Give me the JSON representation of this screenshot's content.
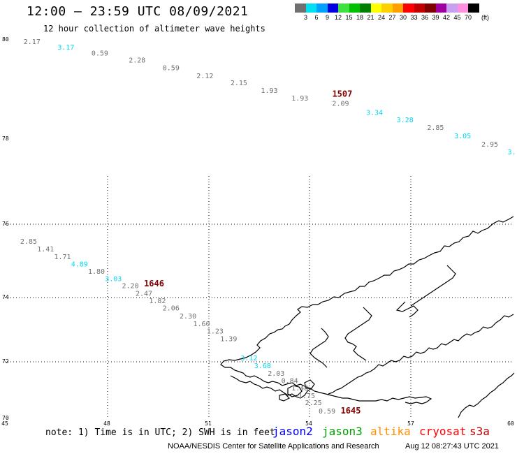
{
  "header": {
    "title": "12:00 – 23:59 UTC 08/09/2021",
    "subtitle": "12 hour collection of altimeter wave heights"
  },
  "colorbar": {
    "labels": [
      "3",
      "6",
      "9",
      "12",
      "15",
      "18",
      "21",
      "24",
      "27",
      "30",
      "33",
      "36",
      "39",
      "42",
      "45",
      "70"
    ],
    "unit": "(ft)",
    "colors": [
      "#707070",
      "#00e0f0",
      "#00a0ff",
      "#0000e0",
      "#40e040",
      "#00c000",
      "#008000",
      "#ffff00",
      "#ffd000",
      "#ffa000",
      "#ff0000",
      "#c00000",
      "#800000",
      "#a000a0",
      "#c8a0f0",
      "#ff90e0",
      "#000000"
    ]
  },
  "map": {
    "lat_labels": [
      "80",
      "78",
      "76",
      "74",
      "72",
      "70"
    ],
    "lon_labels": [
      "45",
      "48",
      "51",
      "54",
      "57",
      "60"
    ]
  },
  "tracks": {
    "track1": [
      {
        "lon": 45.8,
        "lat": 79.87,
        "v": "2.17",
        "c": "gray"
      },
      {
        "lon": 46.8,
        "lat": 79.72,
        "v": "3.17",
        "c": "cyan"
      },
      {
        "lon": 47.8,
        "lat": 79.57,
        "v": "0.59",
        "c": "gray"
      },
      {
        "lon": 48.9,
        "lat": 79.38,
        "v": "2.28",
        "c": "gray"
      },
      {
        "lon": 49.9,
        "lat": 79.18,
        "v": "0.59",
        "c": "gray"
      },
      {
        "lon": 50.9,
        "lat": 78.97,
        "v": "2.12",
        "c": "gray"
      },
      {
        "lon": 51.9,
        "lat": 78.78,
        "v": "2.15",
        "c": "gray"
      },
      {
        "lon": 52.8,
        "lat": 78.58,
        "v": "1.93",
        "c": "gray"
      },
      {
        "lon": 53.7,
        "lat": 78.38,
        "v": "1.93",
        "c": "gray"
      },
      {
        "lon": 54.9,
        "lat": 78.24,
        "v": "2.09",
        "c": "gray"
      },
      {
        "lon": 55.9,
        "lat": 78.0,
        "v": "3.34",
        "c": "cyan"
      },
      {
        "lon": 56.8,
        "lat": 77.8,
        "v": "3.28",
        "c": "cyan"
      },
      {
        "lon": 57.7,
        "lat": 77.6,
        "v": "2.85",
        "c": "gray"
      },
      {
        "lon": 58.5,
        "lat": 77.38,
        "v": "3.05",
        "c": "cyan"
      },
      {
        "lon": 59.3,
        "lat": 77.16,
        "v": "2.95",
        "c": "gray"
      },
      {
        "lon": 59.95,
        "lat": 76.96,
        "v": "3.",
        "c": "cyan"
      }
    ],
    "track2": [
      {
        "lon": 45.7,
        "lat": 74.59,
        "v": "2.85",
        "c": "gray"
      },
      {
        "lon": 46.2,
        "lat": 74.39,
        "v": "1.41",
        "c": "gray"
      },
      {
        "lon": 46.7,
        "lat": 74.19,
        "v": "1.71",
        "c": "gray"
      },
      {
        "lon": 47.2,
        "lat": 73.99,
        "v": "4.89",
        "c": "cyan"
      },
      {
        "lon": 47.7,
        "lat": 73.8,
        "v": "1.80",
        "c": "gray"
      },
      {
        "lon": 48.2,
        "lat": 73.61,
        "v": "3.03",
        "c": "cyan"
      },
      {
        "lon": 48.7,
        "lat": 73.42,
        "v": "2.20",
        "c": "gray"
      },
      {
        "lon": 49.1,
        "lat": 73.22,
        "v": "2.47",
        "c": "gray"
      },
      {
        "lon": 49.5,
        "lat": 73.03,
        "v": "1.82",
        "c": "gray"
      },
      {
        "lon": 49.9,
        "lat": 72.83,
        "v": "2.06",
        "c": "gray"
      },
      {
        "lon": 50.4,
        "lat": 72.62,
        "v": "2.30",
        "c": "gray"
      },
      {
        "lon": 50.8,
        "lat": 72.42,
        "v": "1.60",
        "c": "gray"
      },
      {
        "lon": 51.2,
        "lat": 72.22,
        "v": "1.23",
        "c": "gray"
      },
      {
        "lon": 51.6,
        "lat": 72.02,
        "v": "1.39",
        "c": "gray"
      },
      {
        "lon": 52.2,
        "lat": 71.51,
        "v": "3.12",
        "c": "cyan"
      },
      {
        "lon": 52.6,
        "lat": 71.31,
        "v": "3.68",
        "c": "cyan"
      },
      {
        "lon": 53.0,
        "lat": 71.11,
        "v": "2.03",
        "c": "gray"
      },
      {
        "lon": 53.4,
        "lat": 70.91,
        "v": "0.84",
        "c": "gray"
      },
      {
        "lon": 53.7,
        "lat": 70.72,
        "v": "1.48",
        "c": "gray"
      },
      {
        "lon": 53.9,
        "lat": 70.52,
        "v": "1.75",
        "c": "gray"
      },
      {
        "lon": 54.1,
        "lat": 70.33,
        "v": "2.25",
        "c": "gray"
      },
      {
        "lon": 54.5,
        "lat": 70.11,
        "v": "0.59",
        "c": "gray"
      }
    ],
    "time_labels": [
      {
        "lon": 54.95,
        "lat": 78.48,
        "text": "1507"
      },
      {
        "lon": 49.4,
        "lat": 73.47,
        "text": "1646"
      },
      {
        "lon": 55.2,
        "lat": 70.11,
        "text": "1645"
      }
    ]
  },
  "footer": {
    "note": "note: 1) Time is in UTC; 2) SWH is in feet",
    "satellites": [
      {
        "name": "jason2",
        "color": "#0000ff"
      },
      {
        "name": "jason3",
        "color": "#00a000"
      },
      {
        "name": "altika",
        "color": "#ff9000"
      },
      {
        "name": "cryosat",
        "color": "#ff0000"
      },
      {
        "name": "s3a",
        "color": "#c00000"
      }
    ],
    "credit": "NOAA/NESDIS Center for Satellite Applications and Research",
    "timestamp": "Aug 12 08:27:43 UTC 2021"
  }
}
